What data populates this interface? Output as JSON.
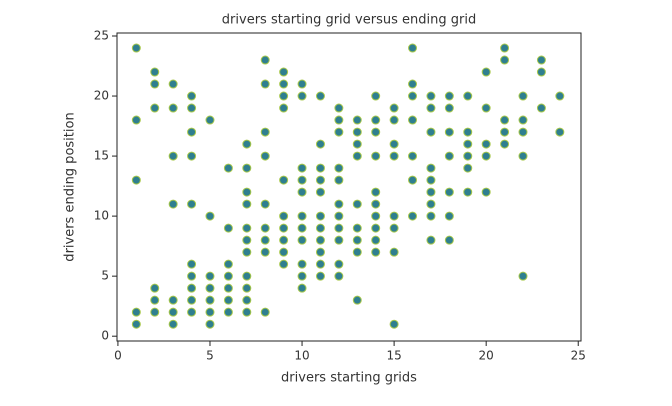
{
  "chart_data": {
    "type": "scatter",
    "title": "drivers starting grid versus ending grid",
    "xlabel": "drivers starting grids",
    "ylabel": "drivers ending position",
    "color": "#2f7f8f",
    "edgecolor": "#a8c84a",
    "xlim": [
      -0.05,
      25.15
    ],
    "ylim": [
      -0.4,
      25.25
    ],
    "xticks": [
      0,
      5,
      10,
      15,
      20,
      25
    ],
    "yticks": [
      0,
      5,
      10,
      15,
      20,
      25
    ],
    "x": [
      1,
      1,
      1,
      1,
      1,
      2,
      2,
      2,
      2,
      2,
      2,
      3,
      3,
      3,
      3,
      3,
      3,
      3,
      4,
      4,
      4,
      4,
      4,
      4,
      4,
      4,
      4,
      4,
      5,
      5,
      5,
      5,
      5,
      5,
      5,
      6,
      6,
      6,
      6,
      6,
      6,
      6,
      7,
      7,
      7,
      7,
      7,
      7,
      7,
      7,
      7,
      7,
      7,
      8,
      8,
      8,
      8,
      8,
      8,
      8,
      8,
      8,
      9,
      9,
      9,
      9,
      9,
      9,
      9,
      9,
      9,
      9,
      10,
      10,
      10,
      10,
      10,
      10,
      10,
      10,
      10,
      10,
      10,
      11,
      11,
      11,
      11,
      11,
      11,
      11,
      11,
      11,
      11,
      11,
      12,
      12,
      12,
      12,
      12,
      12,
      12,
      12,
      12,
      12,
      12,
      13,
      13,
      13,
      13,
      13,
      13,
      13,
      13,
      13,
      14,
      14,
      14,
      14,
      14,
      14,
      14,
      14,
      14,
      14,
      15,
      15,
      15,
      15,
      15,
      15,
      15,
      15,
      16,
      16,
      16,
      16,
      16,
      16,
      16,
      17,
      17,
      17,
      17,
      17,
      17,
      17,
      17,
      17,
      18,
      18,
      18,
      18,
      18,
      18,
      18,
      19,
      19,
      19,
      19,
      19,
      19,
      20,
      20,
      20,
      20,
      20,
      21,
      21,
      21,
      21,
      21,
      22,
      22,
      22,
      22,
      22,
      23,
      23,
      23,
      24,
      24
    ],
    "y": [
      24,
      18,
      13,
      2,
      1,
      22,
      21,
      19,
      4,
      3,
      2,
      21,
      19,
      15,
      11,
      3,
      2,
      1,
      20,
      19,
      17,
      15,
      11,
      6,
      5,
      4,
      3,
      2,
      18,
      10,
      5,
      4,
      3,
      2,
      1,
      14,
      9,
      6,
      5,
      4,
      3,
      2,
      16,
      14,
      12,
      11,
      9,
      8,
      7,
      5,
      4,
      3,
      2,
      23,
      21,
      17,
      15,
      11,
      9,
      8,
      7,
      2,
      22,
      21,
      20,
      19,
      13,
      10,
      9,
      8,
      7,
      6,
      21,
      20,
      14,
      13,
      12,
      10,
      9,
      8,
      6,
      5,
      4,
      20,
      16,
      14,
      13,
      12,
      10,
      9,
      8,
      7,
      6,
      5,
      19,
      18,
      17,
      14,
      13,
      11,
      10,
      9,
      8,
      6,
      5,
      18,
      17,
      16,
      15,
      11,
      9,
      8,
      7,
      3,
      20,
      18,
      17,
      15,
      12,
      11,
      10,
      9,
      8,
      7,
      19,
      18,
      16,
      15,
      10,
      9,
      7,
      1,
      24,
      21,
      20,
      18,
      15,
      13,
      10,
      20,
      19,
      17,
      14,
      13,
      12,
      11,
      10,
      8,
      20,
      19,
      17,
      15,
      12,
      10,
      8,
      20,
      17,
      16,
      15,
      14,
      12,
      22,
      19,
      16,
      15,
      12,
      24,
      23,
      18,
      17,
      16,
      20,
      18,
      17,
      15,
      5,
      23,
      22,
      19,
      20,
      17
    ]
  }
}
